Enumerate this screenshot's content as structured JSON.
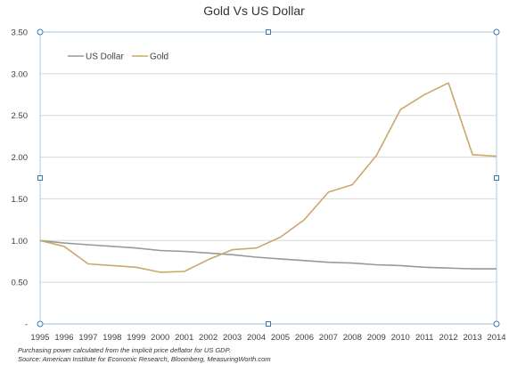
{
  "chart_data": {
    "type": "line",
    "title": "Gold Vs US Dollar",
    "xlabel": "",
    "ylabel": "",
    "x": [
      1995,
      1996,
      1997,
      1998,
      1999,
      2000,
      2001,
      2002,
      2003,
      2004,
      2005,
      2006,
      2007,
      2008,
      2009,
      2010,
      2011,
      2012,
      2013,
      2014
    ],
    "ylim": [
      0,
      3.5
    ],
    "yticks": [
      "-",
      "0.50",
      "1.00",
      "1.50",
      "2.00",
      "2.50",
      "3.00",
      "3.50"
    ],
    "ytick_values": [
      0,
      0.5,
      1.0,
      1.5,
      2.0,
      2.5,
      3.0,
      3.5
    ],
    "grid": true,
    "legend_position": "top-left",
    "series": [
      {
        "name": "US Dollar",
        "color": "#999999",
        "values": [
          1.0,
          0.97,
          0.95,
          0.93,
          0.91,
          0.88,
          0.87,
          0.85,
          0.83,
          0.8,
          0.78,
          0.76,
          0.74,
          0.73,
          0.71,
          0.7,
          0.68,
          0.67,
          0.66,
          0.66
        ]
      },
      {
        "name": "Gold",
        "color": "#c9a96a",
        "values": [
          1.0,
          0.93,
          0.72,
          0.7,
          0.68,
          0.62,
          0.63,
          0.77,
          0.89,
          0.91,
          1.04,
          1.25,
          1.58,
          1.67,
          2.02,
          2.57,
          2.75,
          2.89,
          2.03,
          2.01
        ]
      }
    ],
    "notes": [
      "Purchasing power calculated from the implicit price deflator for US GDP.",
      "Source: American Institute for Economic Research, Bloomberg, MeasuringWorth.com"
    ]
  }
}
